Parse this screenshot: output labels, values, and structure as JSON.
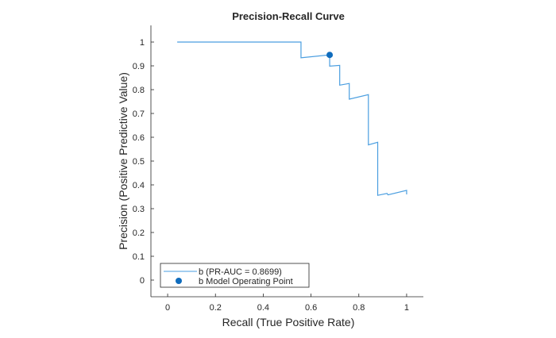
{
  "chart_data": {
    "type": "line",
    "title": "Precision-Recall Curve",
    "xlabel": "Recall (True Positive Rate)",
    "ylabel": "Precision (Positive Predictive Value)",
    "xlim": [
      -0.07,
      1.07
    ],
    "ylim": [
      -0.07,
      1.07
    ],
    "xticks": [
      "0",
      "0.2",
      "0.4",
      "0.6",
      "0.8",
      "1"
    ],
    "yticks": [
      "0",
      "0.1",
      "0.2",
      "0.3",
      "0.4",
      "0.5",
      "0.6",
      "0.7",
      "0.8",
      "0.9",
      "1"
    ],
    "grid": false,
    "legend_placement": "bottom-left",
    "series": [
      {
        "name": "b (PR-AUC = 0.8699)",
        "color": "#4a9ee0",
        "x": [
          0.04,
          0.558,
          0.558,
          0.678,
          0.678,
          0.72,
          0.72,
          0.76,
          0.76,
          0.84,
          0.84,
          0.879,
          0.879,
          0.918,
          0.922,
          1.0,
          1.0
        ],
        "y": [
          1,
          1,
          0.934,
          0.946,
          0.899,
          0.902,
          0.819,
          0.826,
          0.76,
          0.779,
          0.568,
          0.579,
          0.356,
          0.364,
          0.358,
          0.377,
          0.36
        ]
      },
      {
        "name": "b Model Operating Point",
        "type": "scatter",
        "color": "#0f6cbd",
        "x": [
          0.678
        ],
        "y": [
          0.946
        ]
      }
    ]
  }
}
